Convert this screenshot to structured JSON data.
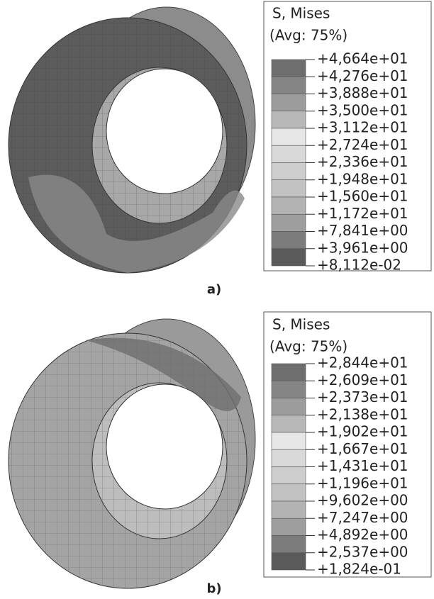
{
  "panels": [
    {
      "legend": {
        "title": "S, Mises",
        "subtitle": "(Avg: 75%)",
        "labels": [
          "+4,664e+01",
          "+4,276e+01",
          "+3,888e+01",
          "+3,500e+01",
          "+3,112e+01",
          "+2,724e+01",
          "+2,336e+01",
          "+1,948e+01",
          "+1,560e+01",
          "+1,172e+01",
          "+7,841e+00",
          "+3,961e+00",
          "+8,112e-02"
        ]
      },
      "label": "a)"
    },
    {
      "legend": {
        "title": "S, Mises",
        "subtitle": "(Avg: 75%)",
        "labels": [
          "+2,844e+01",
          "+2,609e+01",
          "+2,373e+01",
          "+2,138e+01",
          "+1,902e+01",
          "+1,667e+01",
          "+1,431e+01",
          "+1,196e+01",
          "+9,602e+00",
          "+7,247e+00",
          "+4,892e+00",
          "+2,537e+00",
          "+1,824e-01"
        ]
      },
      "label": "b)"
    }
  ]
}
